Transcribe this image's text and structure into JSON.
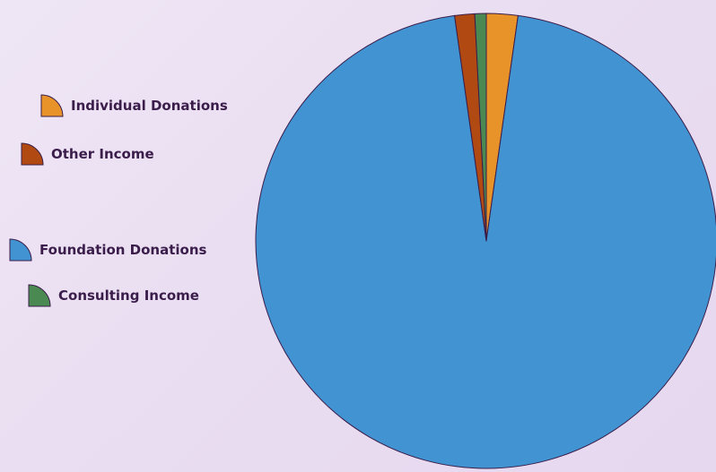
{
  "chart_data": {
    "type": "pie",
    "title": "",
    "categories": [
      "Individual Donations",
      "Other Income",
      "Foundation Donations",
      "Consulting Income"
    ],
    "values": [
      2.2,
      1.4,
      95.6,
      0.8
    ],
    "slice_order": [
      "Individual Donations",
      "Foundation Donations",
      "Other Income",
      "Consulting Income"
    ],
    "colors": {
      "Individual Donations": "#e8922a",
      "Other Income": "#b14a12",
      "Foundation Donations": "#4193d1",
      "Consulting Income": "#4a8a52"
    },
    "legend": {
      "position": "left",
      "items": [
        {
          "label": "Individual Donations",
          "color": "#e8922a"
        },
        {
          "label": "Other Income",
          "color": "#b14a12"
        },
        {
          "label": "Foundation Donations",
          "color": "#4193d1"
        },
        {
          "label": "Consulting Income",
          "color": "#4a8a52"
        }
      ]
    },
    "outline_color": "#3a1d4a"
  }
}
